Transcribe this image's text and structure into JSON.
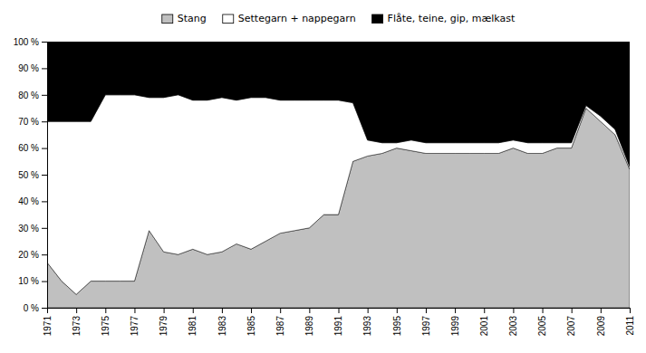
{
  "chart_data": {
    "type": "area",
    "stacked": true,
    "grid": false,
    "legend": "top",
    "background_color": "#ffffff",
    "x": [
      1971,
      1972,
      1973,
      1974,
      1975,
      1976,
      1977,
      1978,
      1979,
      1980,
      1981,
      1982,
      1983,
      1984,
      1985,
      1986,
      1987,
      1988,
      1989,
      1990,
      1991,
      1992,
      1993,
      1994,
      1995,
      1996,
      1997,
      1998,
      1999,
      2000,
      2001,
      2002,
      2003,
      2004,
      2005,
      2006,
      2007,
      2008,
      2009,
      2010,
      2011
    ],
    "series": [
      {
        "name": "Stang",
        "color": "#c0c0c0",
        "values": [
          17,
          10,
          5,
          10,
          10,
          10,
          10,
          29,
          21,
          20,
          22,
          20,
          21,
          24,
          22,
          25,
          28,
          29,
          30,
          35,
          35,
          55,
          57,
          58,
          60,
          59,
          58,
          58,
          58,
          58,
          58,
          58,
          60,
          58,
          58,
          60,
          60,
          75,
          70,
          65,
          52
        ]
      },
      {
        "name": "Settegarn + nappegarn",
        "color": "#ffffff",
        "values": [
          53,
          60,
          65,
          60,
          70,
          70,
          70,
          50,
          58,
          60,
          56,
          58,
          58,
          54,
          57,
          54,
          50,
          49,
          48,
          43,
          43,
          22,
          6,
          4,
          2,
          4,
          4,
          4,
          4,
          4,
          4,
          4,
          3,
          4,
          4,
          2,
          2,
          1,
          2,
          2,
          1
        ]
      },
      {
        "name": "Flåte, teine, gip, mælkast",
        "color": "#000000",
        "values": [
          30,
          30,
          30,
          30,
          20,
          20,
          20,
          21,
          21,
          20,
          22,
          22,
          21,
          22,
          21,
          21,
          22,
          22,
          22,
          22,
          22,
          23,
          37,
          38,
          38,
          37,
          38,
          38,
          38,
          38,
          38,
          38,
          37,
          38,
          38,
          38,
          38,
          24,
          28,
          33,
          47
        ]
      }
    ],
    "xlim": [
      1971,
      2011
    ],
    "xticks": [
      1971,
      1973,
      1975,
      1977,
      1979,
      1981,
      1983,
      1985,
      1987,
      1989,
      1991,
      1993,
      1995,
      1997,
      1999,
      2001,
      2003,
      2005,
      2007,
      2009,
      2011
    ],
    "ylim": [
      0,
      100
    ],
    "yticks": [
      {
        "value": 0,
        "label": "0 %"
      },
      {
        "value": 10,
        "label": "10 %"
      },
      {
        "value": 20,
        "label": "20 %"
      },
      {
        "value": 30,
        "label": "30 %"
      },
      {
        "value": 40,
        "label": "40 %"
      },
      {
        "value": 50,
        "label": "50 %"
      },
      {
        "value": 60,
        "label": "60 %"
      },
      {
        "value": 70,
        "label": "70 %"
      },
      {
        "value": 80,
        "label": "80 %"
      },
      {
        "value": 90,
        "label": "90 %"
      },
      {
        "value": 100,
        "label": "100 %"
      }
    ]
  }
}
